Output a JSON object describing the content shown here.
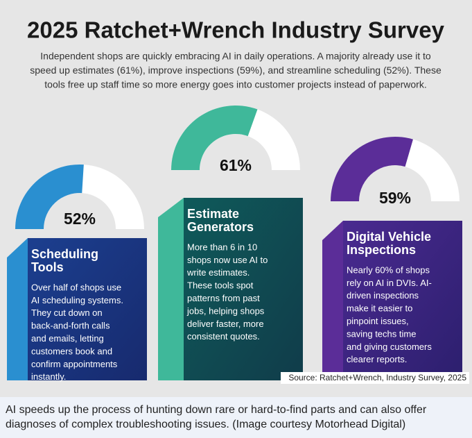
{
  "header": {
    "title": "2025 Ratchet+Wrench Industry Survey",
    "intro_lines": [
      "Independent shops are quickly embracing AI in daily operations. A majority already use it to",
      "speed up estimates (61%), improve inspections (59%), and streamline scheduling (52%). These",
      "tools free up staff time so more energy goes into customer projects instead of paperwork."
    ]
  },
  "panels": [
    {
      "value": 52,
      "value_label": "52%",
      "color": "#2a8fd0",
      "title_lines": [
        "Scheduling",
        "Tools"
      ],
      "body_lines": [
        "Over half of shops use",
        "AI scheduling systems.",
        "They cut down on",
        "back-and-forth calls",
        "and emails, letting",
        "customers book and",
        "confirm appointments",
        "instantly."
      ]
    },
    {
      "value": 61,
      "value_label": "61%",
      "color": "#3fb89a",
      "title_lines": [
        "Estimate",
        "Generators"
      ],
      "body_lines": [
        "More than 6 in 10",
        "shops now use AI to",
        "write estimates.",
        "These tools spot",
        "patterns from past",
        "jobs, helping shops",
        "deliver faster, more",
        "consistent quotes."
      ]
    },
    {
      "value": 59,
      "value_label": "59%",
      "color": "#5b2d98",
      "title_lines": [
        "Digital Vehicle",
        "Inspections"
      ],
      "body_lines": [
        "Nearly 60% of shops",
        "rely on AI in DVIs. AI-",
        "driven inspections",
        "make it easier to",
        "pinpoint issues,",
        "saving techs time",
        "and giving customers",
        "clearer reports."
      ]
    }
  ],
  "source": "Source: Ratchet+Wrench, Industry Survey, 2025",
  "caption_lines": [
    "AI speeds up the process of hunting down rare or hard-to-find parts and can also offer",
    "diagnoses of complex troubleshooting issues. (Image courtesy Motorhead Digital)"
  ]
}
